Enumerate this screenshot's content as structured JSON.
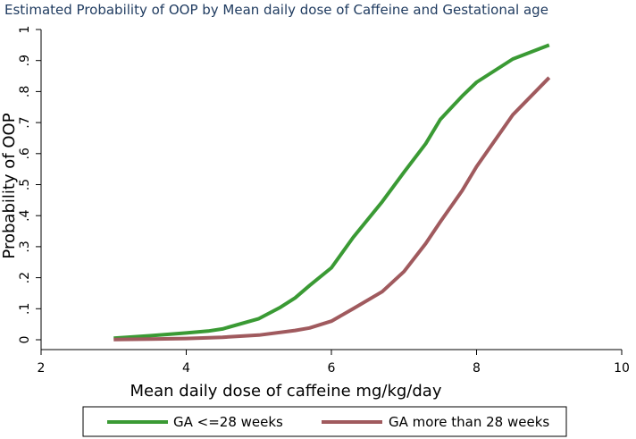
{
  "chart_data": {
    "type": "line",
    "title": "Estimated Probability of OOP by Mean daily dose of Caffeine and Gestational age",
    "xlabel": "Mean daily dose of caffeine mg/kg/day",
    "ylabel": "Probability of OOP",
    "xlim": [
      2,
      10
    ],
    "ylim": [
      0,
      1
    ],
    "xticks": [
      2,
      4,
      6,
      8,
      10
    ],
    "xtick_labels": [
      "2",
      "4",
      "6",
      "8",
      "10"
    ],
    "yticks": [
      0,
      0.1,
      0.2,
      0.3,
      0.4,
      0.5,
      0.6,
      0.7,
      0.8,
      0.9,
      1
    ],
    "ytick_labels": [
      "0",
      ".1",
      ".2",
      ".3",
      ".4",
      ".5",
      ".6",
      ".7",
      ".8",
      ".9",
      "1"
    ],
    "grid": false,
    "legend_position": "bottom",
    "series": [
      {
        "name": "GA <=28 weeks",
        "color": "#3a9a34",
        "x": [
          3.0,
          3.5,
          4.0,
          4.3,
          4.5,
          5.0,
          5.3,
          5.5,
          5.7,
          6.0,
          6.3,
          6.7,
          7.0,
          7.3,
          7.5,
          7.8,
          8.0,
          8.5,
          9.0
        ],
        "y": [
          0.005,
          0.013,
          0.022,
          0.028,
          0.035,
          0.068,
          0.105,
          0.135,
          0.175,
          0.232,
          0.33,
          0.445,
          0.54,
          0.632,
          0.71,
          0.785,
          0.83,
          0.905,
          0.95
        ]
      },
      {
        "name": "GA more than 28 weeks",
        "color": "#a05a5e",
        "x": [
          3.0,
          3.5,
          4.0,
          4.5,
          5.0,
          5.5,
          5.7,
          6.0,
          6.3,
          6.7,
          7.0,
          7.3,
          7.5,
          7.8,
          8.0,
          8.5,
          9.0
        ],
        "y": [
          0.001,
          0.002,
          0.004,
          0.008,
          0.015,
          0.03,
          0.038,
          0.06,
          0.1,
          0.155,
          0.22,
          0.31,
          0.38,
          0.48,
          0.558,
          0.725,
          0.845
        ]
      }
    ]
  }
}
